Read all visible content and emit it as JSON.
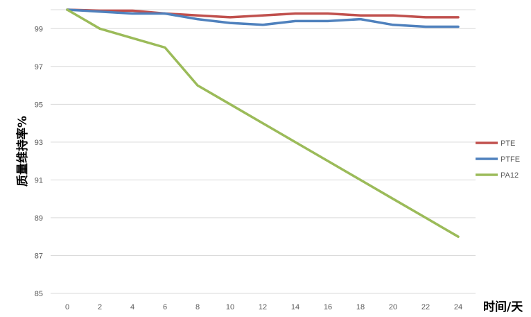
{
  "chart_data": {
    "type": "line",
    "title": "",
    "xlabel": "时间/天",
    "ylabel": "质量维持率%",
    "x": [
      0,
      2,
      4,
      6,
      8,
      10,
      12,
      14,
      16,
      18,
      20,
      22,
      24
    ],
    "ylim": [
      85,
      100
    ],
    "yticks": [
      85,
      87,
      89,
      91,
      93,
      95,
      97,
      99
    ],
    "grid": true,
    "legend_position": "right",
    "series": [
      {
        "name": "PTE",
        "color": "#c0504d",
        "values": [
          100,
          99.95,
          99.95,
          99.8,
          99.7,
          99.6,
          99.7,
          99.8,
          99.8,
          99.7,
          99.7,
          99.6,
          99.6
        ]
      },
      {
        "name": "PTFE",
        "color": "#4f81bd",
        "values": [
          100,
          99.9,
          99.8,
          99.8,
          99.5,
          99.3,
          99.2,
          99.4,
          99.4,
          99.5,
          99.2,
          99.1,
          99.1
        ]
      },
      {
        "name": "PA12",
        "color": "#9bbb59",
        "values": [
          100,
          99,
          98.5,
          98,
          96,
          95,
          94,
          93,
          92,
          91,
          90,
          89,
          88
        ]
      }
    ]
  }
}
